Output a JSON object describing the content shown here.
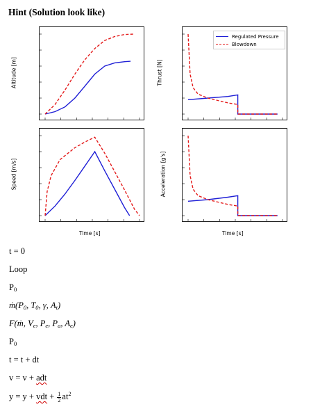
{
  "hint": "Hint (Solution look like)",
  "colors": {
    "regulated": "#1f1fd6",
    "blowdown": "#e41a1a",
    "axis": "#222222"
  },
  "legend": {
    "regulated": "Regulated Pressure",
    "blowdown": "Blowdown"
  },
  "plots": {
    "altitude": {
      "ylabel": "Altitude [m]"
    },
    "thrust": {
      "ylabel": "Thrust [N]"
    },
    "speed": {
      "ylabel": "Speed [m/s]",
      "xlabel": "Time [s]"
    },
    "acceleration": {
      "ylabel": "Acceleration [g's]",
      "xlabel": "Time [s]"
    }
  },
  "chart_data": [
    {
      "type": "line",
      "ylabel": "Altitude [m]",
      "series": [
        {
          "name": "Regulated Pressure",
          "style": "solid",
          "points": [
            [
              0,
              0
            ],
            [
              0.1,
              0.03
            ],
            [
              0.2,
              0.09
            ],
            [
              0.3,
              0.2
            ],
            [
              0.4,
              0.35
            ],
            [
              0.5,
              0.5
            ],
            [
              0.6,
              0.6
            ],
            [
              0.7,
              0.64
            ],
            [
              0.8,
              0.655
            ],
            [
              0.86,
              0.66
            ]
          ]
        },
        {
          "name": "Blowdown",
          "style": "dashed",
          "points": [
            [
              0,
              0
            ],
            [
              0.1,
              0.12
            ],
            [
              0.2,
              0.3
            ],
            [
              0.3,
              0.5
            ],
            [
              0.4,
              0.68
            ],
            [
              0.5,
              0.82
            ],
            [
              0.6,
              0.92
            ],
            [
              0.7,
              0.97
            ],
            [
              0.8,
              0.995
            ],
            [
              0.9,
              1.0
            ]
          ]
        }
      ]
    },
    {
      "type": "line",
      "ylabel": "Thrust [N]",
      "series": [
        {
          "name": "Regulated Pressure",
          "style": "solid",
          "points": [
            [
              0,
              0.18
            ],
            [
              0.2,
              0.2
            ],
            [
              0.4,
              0.22
            ],
            [
              0.5,
              0.24
            ],
            [
              0.5,
              0
            ],
            [
              0.9,
              0
            ]
          ]
        },
        {
          "name": "Blowdown",
          "style": "dashed",
          "points": [
            [
              0,
              1.0
            ],
            [
              0.02,
              0.5
            ],
            [
              0.05,
              0.33
            ],
            [
              0.1,
              0.25
            ],
            [
              0.2,
              0.2
            ],
            [
              0.3,
              0.17
            ],
            [
              0.4,
              0.14
            ],
            [
              0.5,
              0.12
            ],
            [
              0.5,
              0
            ],
            [
              0.9,
              0
            ]
          ]
        }
      ]
    },
    {
      "type": "line",
      "ylabel": "Speed [m/s]",
      "xlabel": "Time [s]",
      "series": [
        {
          "name": "Regulated Pressure",
          "style": "solid",
          "points": [
            [
              0,
              0
            ],
            [
              0.1,
              0.12
            ],
            [
              0.2,
              0.27
            ],
            [
              0.3,
              0.44
            ],
            [
              0.4,
              0.62
            ],
            [
              0.5,
              0.8
            ],
            [
              0.6,
              0.56
            ],
            [
              0.7,
              0.33
            ],
            [
              0.8,
              0.1
            ],
            [
              0.85,
              0
            ]
          ]
        },
        {
          "name": "Blowdown",
          "style": "dashed",
          "points": [
            [
              0,
              0
            ],
            [
              0.02,
              0.3
            ],
            [
              0.06,
              0.5
            ],
            [
              0.15,
              0.7
            ],
            [
              0.3,
              0.85
            ],
            [
              0.4,
              0.92
            ],
            [
              0.5,
              0.98
            ],
            [
              0.6,
              0.78
            ],
            [
              0.7,
              0.55
            ],
            [
              0.8,
              0.32
            ],
            [
              0.9,
              0.08
            ],
            [
              0.95,
              0
            ]
          ]
        }
      ]
    },
    {
      "type": "line",
      "ylabel": "Acceleration [g's]",
      "xlabel": "Time [s]",
      "series": [
        {
          "name": "Regulated Pressure",
          "style": "solid",
          "points": [
            [
              0,
              0.18
            ],
            [
              0.2,
              0.2
            ],
            [
              0.4,
              0.23
            ],
            [
              0.5,
              0.25
            ],
            [
              0.5,
              0
            ],
            [
              0.9,
              0
            ]
          ]
        },
        {
          "name": "Blowdown",
          "style": "dashed",
          "points": [
            [
              0,
              1.0
            ],
            [
              0.02,
              0.5
            ],
            [
              0.05,
              0.33
            ],
            [
              0.1,
              0.25
            ],
            [
              0.2,
              0.2
            ],
            [
              0.3,
              0.17
            ],
            [
              0.4,
              0.14
            ],
            [
              0.5,
              0.12
            ],
            [
              0.5,
              0
            ],
            [
              0.9,
              0
            ]
          ]
        }
      ]
    }
  ],
  "steps": {
    "t0": "t = 0",
    "loop": "Loop",
    "p0": "P",
    "p0_sub": "0",
    "mdot_prefix": "ṁ(P",
    "mdot_rest": ", T",
    "mdot_rest2": ", γ, A",
    "mdot_end": ")",
    "mdot_sub0": "0",
    "mdot_subt": "t",
    "f_prefix": "F(ṁ, V",
    "f_p": ", P",
    "f_pa": ", P",
    "f_ae": ", A",
    "f_end": ")",
    "sub_e": "e",
    "sub_a": "a",
    "p0b": "P",
    "p0b_sub": "0",
    "tupdate": "t = t + dt",
    "v_prefix": "v = v + ",
    "v_under": "adt",
    "y_prefix": "y = y + ",
    "y_under": "vdt",
    "y_plus": " + ",
    "frac_num": "1",
    "frac_den": "2",
    "y_tail": "at",
    "y_sup": "2"
  }
}
